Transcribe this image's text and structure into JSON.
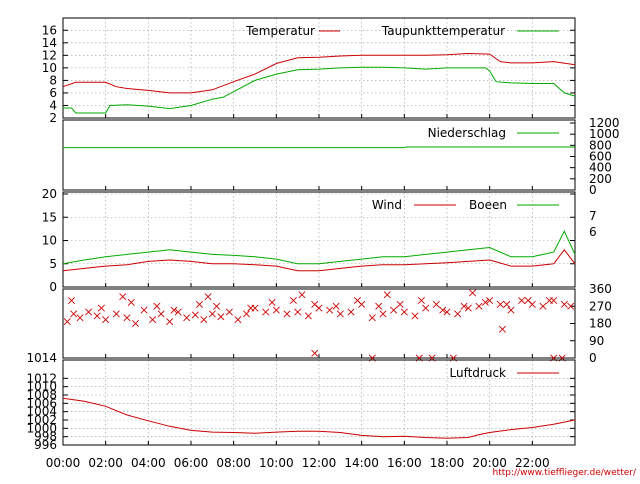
{
  "chart_data": [
    {
      "type": "line",
      "title": "",
      "ylim": [
        2,
        17
      ],
      "yticks": [
        2,
        4,
        6,
        8,
        10,
        12,
        14,
        16
      ],
      "grid": true,
      "legend": "top-right",
      "series": [
        {
          "name": "Temperatur",
          "color": "#cc0000",
          "x": [
            0,
            0.6,
            1.5,
            2,
            2.5,
            3,
            4,
            5,
            6,
            7,
            8,
            9,
            10,
            11,
            12,
            13,
            14,
            15,
            16,
            17,
            18,
            19,
            20,
            20.5,
            21,
            22,
            23,
            24
          ],
          "values": [
            7.0,
            7.7,
            7.7,
            7.7,
            7.0,
            6.7,
            6.4,
            6.0,
            6.0,
            6.5,
            7.8,
            9.0,
            10.7,
            11.6,
            11.7,
            11.9,
            12.0,
            12.0,
            12.0,
            12.0,
            12.1,
            12.3,
            12.2,
            11.0,
            10.8,
            10.8,
            11.0,
            10.5
          ]
        },
        {
          "name": "Taupunkttemperatur",
          "color": "#00aa00",
          "x": [
            0,
            0.4,
            0.6,
            1.5,
            2,
            2.2,
            3,
            4,
            5,
            6,
            7,
            7.5,
            8,
            9,
            10,
            11,
            12,
            13,
            14,
            15,
            16,
            17,
            18,
            19,
            19.8,
            20,
            20.3,
            21,
            22,
            23,
            23.5,
            24
          ],
          "values": [
            3.6,
            3.6,
            2.8,
            2.8,
            2.8,
            4.0,
            4.1,
            3.9,
            3.5,
            4.0,
            5.0,
            5.3,
            6.2,
            8.0,
            9.0,
            9.7,
            9.8,
            10.0,
            10.1,
            10.1,
            10.0,
            9.8,
            10.0,
            10.0,
            10.0,
            9.5,
            7.8,
            7.6,
            7.5,
            7.5,
            6.0,
            5.5
          ]
        }
      ]
    },
    {
      "type": "line",
      "title": "",
      "ylim": [
        0,
        1200
      ],
      "yticks": [
        0,
        200,
        400,
        600,
        800,
        1000,
        1200
      ],
      "grid": false,
      "legend": "top-right",
      "series": [
        {
          "name": "Niederschlag",
          "color": "#00aa00",
          "x": [
            0,
            16,
            16.1,
            24
          ],
          "values": [
            760,
            760,
            770,
            770
          ]
        }
      ]
    },
    {
      "type": "line",
      "title": "",
      "ylim": [
        0,
        20
      ],
      "yticks": [
        0,
        5,
        10,
        15,
        20
      ],
      "right_ticks": [
        "7",
        "6"
      ],
      "grid": true,
      "legend": "top-right",
      "series": [
        {
          "name": "Wind",
          "color": "#cc0000",
          "x": [
            0,
            1,
            2,
            3,
            4,
            5,
            6,
            7,
            8,
            9,
            10,
            11,
            12,
            13,
            14,
            15,
            16,
            17,
            18,
            19,
            20,
            21,
            22,
            23,
            23.5,
            24
          ],
          "values": [
            3.5,
            4.0,
            4.5,
            4.8,
            5.5,
            5.8,
            5.5,
            5.0,
            5.0,
            4.8,
            4.5,
            3.5,
            3.5,
            4.0,
            4.5,
            4.8,
            4.8,
            5.0,
            5.2,
            5.5,
            5.8,
            4.5,
            4.5,
            5.0,
            8.0,
            5.0
          ]
        },
        {
          "name": "Boeen",
          "color": "#00aa00",
          "x": [
            0,
            1,
            2,
            3,
            4,
            5,
            6,
            7,
            8,
            9,
            10,
            11,
            12,
            13,
            14,
            15,
            16,
            17,
            18,
            19,
            20,
            21,
            22,
            23,
            23.5,
            24
          ],
          "values": [
            5.0,
            5.8,
            6.5,
            7.0,
            7.5,
            8.0,
            7.5,
            7.0,
            6.8,
            6.5,
            6.0,
            5.0,
            5.0,
            5.5,
            6.0,
            6.5,
            6.5,
            7.0,
            7.5,
            8.0,
            8.5,
            6.5,
            6.5,
            7.5,
            12.0,
            7.0
          ]
        }
      ]
    },
    {
      "type": "scatter",
      "title": "",
      "ylim": [
        0,
        360
      ],
      "yticks": [
        0,
        90,
        180,
        270,
        360
      ],
      "left_ticks": [
        "1014"
      ],
      "grid": false,
      "series": [
        {
          "name": "",
          "color": "#cc0000",
          "x": [
            0.2,
            0.5,
            0.8,
            1.2,
            1.6,
            2.0,
            2.5,
            3.0,
            3.4,
            3.8,
            4.2,
            4.6,
            5.0,
            5.4,
            5.8,
            6.2,
            6.6,
            7.0,
            7.4,
            7.8,
            8.2,
            8.6,
            9.0,
            9.5,
            10.0,
            10.5,
            11.0,
            11.5,
            12.0,
            12.5,
            13.0,
            13.5,
            14.0,
            14.5,
            15.0,
            15.5,
            16.0,
            16.5,
            17.0,
            17.5,
            18.0,
            18.5,
            19.0,
            19.5,
            20.0,
            20.5,
            21.0,
            21.5,
            22.0,
            22.5,
            23.0,
            23.5,
            0.4,
            1.8,
            3.2,
            4.4,
            5.2,
            6.4,
            7.2,
            8.8,
            9.8,
            10.8,
            11.8,
            12.8,
            13.8,
            14.8,
            15.8,
            16.8,
            17.8,
            18.8,
            19.8,
            20.8,
            21.8,
            22.8,
            23.8,
            2.8,
            6.8,
            11.2,
            15.2,
            19.2,
            20.6,
            11.8,
            14.5,
            16.7,
            17.3,
            18.3,
            23.0,
            23.4
          ],
          "values": [
            190,
            230,
            210,
            240,
            220,
            200,
            230,
            210,
            180,
            250,
            200,
            230,
            190,
            240,
            210,
            225,
            200,
            230,
            215,
            240,
            200,
            230,
            260,
            240,
            250,
            230,
            240,
            220,
            260,
            250,
            230,
            240,
            280,
            210,
            230,
            250,
            240,
            220,
            260,
            280,
            240,
            230,
            260,
            270,
            300,
            280,
            250,
            300,
            280,
            270,
            300,
            280,
            300,
            260,
            290,
            270,
            250,
            280,
            270,
            260,
            290,
            300,
            280,
            270,
            300,
            270,
            280,
            300,
            250,
            270,
            290,
            280,
            300,
            300,
            270,
            320,
            320,
            330,
            330,
            340,
            150,
            25,
            0,
            0,
            0,
            0,
            0,
            0
          ]
        }
      ]
    },
    {
      "type": "line",
      "title": "",
      "ylim": [
        996,
        1014
      ],
      "yticks": [
        996,
        998,
        1000,
        1002,
        1004,
        1006,
        1008,
        1010,
        1012
      ],
      "grid": true,
      "legend": "top-right",
      "series": [
        {
          "name": "Luftdruck",
          "color": "#cc0000",
          "x": [
            0,
            1,
            2,
            3,
            4,
            5,
            6,
            7,
            8,
            9,
            10,
            11,
            12,
            13,
            14,
            15,
            16,
            17,
            18,
            19,
            19.5,
            20,
            21,
            22,
            23,
            24
          ],
          "values": [
            1007.2,
            1006.5,
            1005.3,
            1003.2,
            1001.8,
            1000.5,
            999.5,
            999.1,
            999.0,
            998.8,
            999.1,
            999.3,
            999.3,
            999.0,
            998.3,
            998.0,
            998.1,
            997.8,
            997.6,
            997.8,
            998.5,
            999.0,
            999.7,
            1000.2,
            1001.0,
            1002.0
          ]
        }
      ]
    }
  ],
  "x_axis": {
    "labels": [
      "00:00",
      "02:00",
      "04:00",
      "06:00",
      "08:00",
      "10:00",
      "12:00",
      "14:00",
      "16:00",
      "18:00",
      "20:00",
      "22:00"
    ],
    "xlim": [
      0,
      24
    ]
  },
  "credit": "http://www.tiefflieger.de/wetter/"
}
